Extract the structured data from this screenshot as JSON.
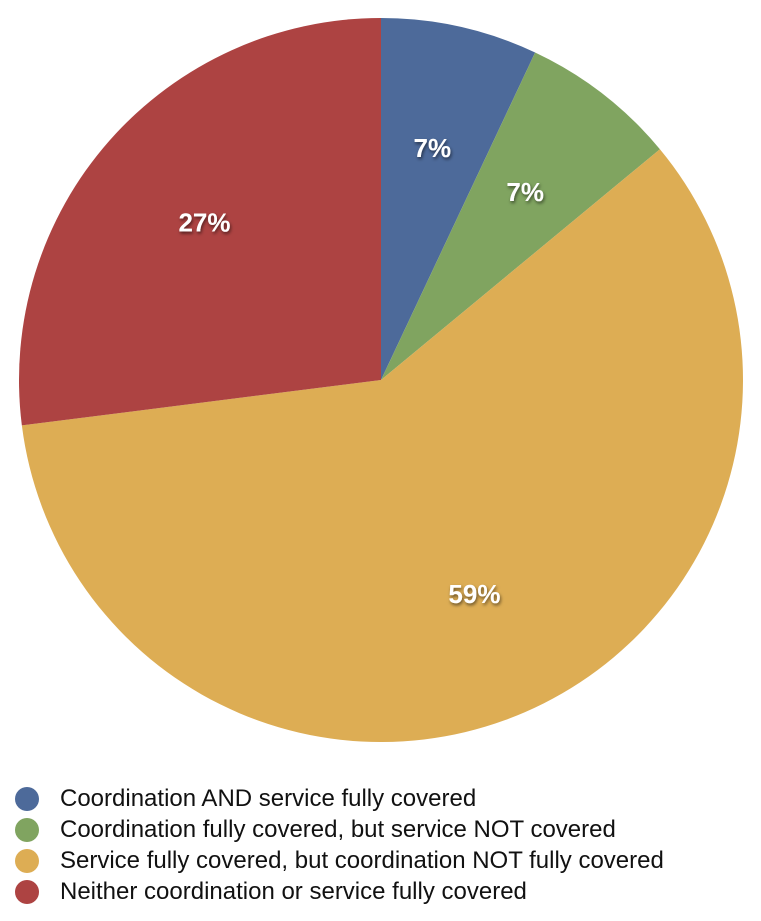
{
  "chart_data": {
    "type": "pie",
    "slices": [
      {
        "name": "Coordination AND service fully covered",
        "value": 7,
        "label": "7%",
        "color": "#4d6a9a"
      },
      {
        "name": "Coordination fully covered, but service NOT covered",
        "value": 7,
        "label": "7%",
        "color": "#80a460"
      },
      {
        "name": "Service fully covered, but coordination NOT fully covered",
        "value": 59,
        "label": "59%",
        "color": "#ddad54"
      },
      {
        "name": "Neither coordination or service fully covered",
        "value": 27,
        "label": "27%",
        "color": "#ad4342"
      }
    ],
    "start_angle_deg": 0,
    "direction": "clockwise",
    "legend_position": "bottom-left"
  }
}
